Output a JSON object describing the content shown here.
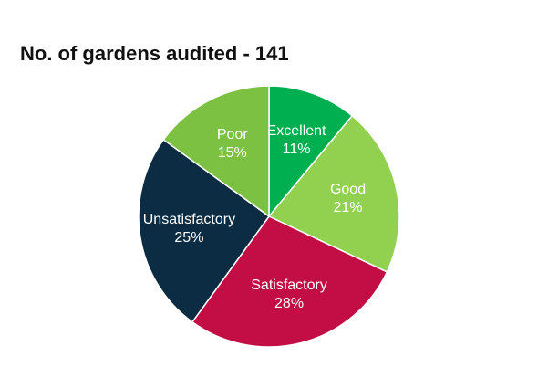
{
  "chart_data": {
    "type": "pie",
    "title": "No. of gardens audited - 141",
    "categories": [
      "Excellent",
      "Good",
      "Satisfactory",
      "Unsatisfactory",
      "Poor"
    ],
    "values": [
      11,
      21,
      28,
      25,
      15
    ],
    "value_labels": [
      "11%",
      "21%",
      "28%",
      "25%",
      "15%"
    ],
    "colors": [
      "#00b050",
      "#92d050",
      "#c20d45",
      "#0b2c42",
      "#7cc142"
    ]
  }
}
